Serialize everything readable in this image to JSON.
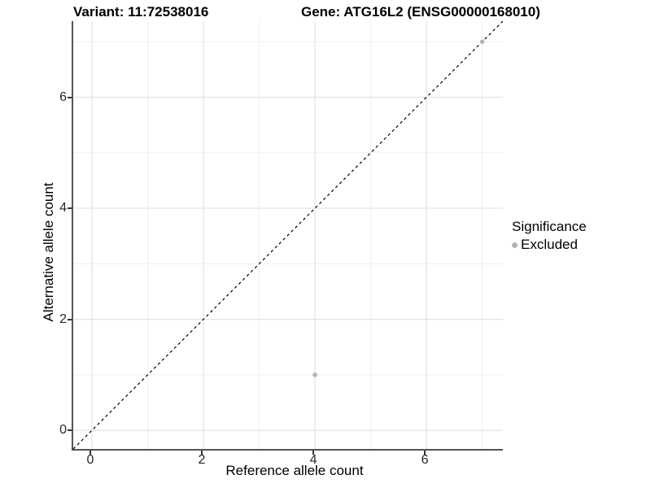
{
  "chart_data": {
    "type": "scatter",
    "title_left": "Variant: 11:72538016",
    "title_right": "Gene: ATG16L2 (ENSG00000168010)",
    "xlabel": "Reference allele count",
    "ylabel": "Alternative allele count",
    "xlim": [
      -0.335,
      7.37
    ],
    "ylim": [
      -0.335,
      7.37
    ],
    "x_major_ticks": [
      0,
      2,
      4,
      6
    ],
    "y_major_ticks": [
      0,
      2,
      4,
      6
    ],
    "x_minor_gridlines": [
      1,
      3,
      5,
      7
    ],
    "y_minor_gridlines": [
      1,
      3,
      5,
      7
    ],
    "grid": "major-and-minor",
    "panel_background": "#ffffff",
    "major_grid_color": "#e3e3e3",
    "minor_grid_color": "#efefef",
    "axis_line_color": "#555555",
    "identity_line": {
      "style": "dashed",
      "color": "#000000",
      "slope": 1,
      "intercept": 0
    },
    "series": [
      {
        "name": "Excluded",
        "color": "#b3b3b3",
        "point_radius": 2.8,
        "points": [
          {
            "x": 4,
            "y": 1
          },
          {
            "x": 7,
            "y": 7
          }
        ]
      }
    ],
    "legend": {
      "position": "right",
      "title": "Significance",
      "entries": [
        {
          "label": "Excluded",
          "color": "#b3b3b3"
        }
      ]
    }
  }
}
